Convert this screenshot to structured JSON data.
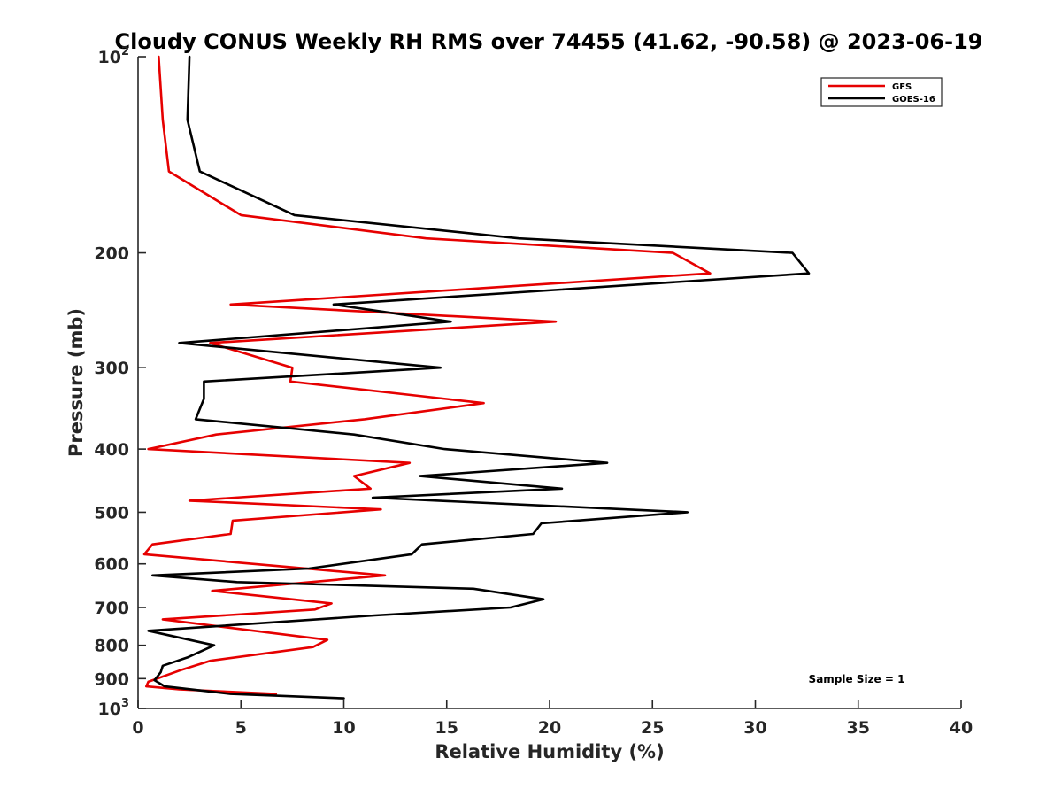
{
  "chart_data": {
    "type": "line",
    "title": "Cloudy CONUS Weekly RH RMS over 74455 (41.62, -90.58) @ 2023-06-19",
    "xlabel": "Relative Humidity (%)",
    "ylabel": "Pressure (mb)",
    "xlim": [
      0,
      40
    ],
    "ylim": [
      100,
      1000
    ],
    "y_scale": "log",
    "y_reversed": true,
    "x_ticks": [
      0,
      5,
      10,
      15,
      20,
      25,
      30,
      35,
      40
    ],
    "y_ticks": [
      {
        "value": 100,
        "label": "10",
        "exp": "2"
      },
      {
        "value": 200,
        "label": "200",
        "exp": ""
      },
      {
        "value": 300,
        "label": "300",
        "exp": ""
      },
      {
        "value": 400,
        "label": "400",
        "exp": ""
      },
      {
        "value": 500,
        "label": "500",
        "exp": ""
      },
      {
        "value": 600,
        "label": "600",
        "exp": ""
      },
      {
        "value": 700,
        "label": "700",
        "exp": ""
      },
      {
        "value": 800,
        "label": "800",
        "exp": ""
      },
      {
        "value": 900,
        "label": "900",
        "exp": ""
      },
      {
        "value": 1000,
        "label": "10",
        "exp": "3"
      }
    ],
    "legend_position": "top-right",
    "grid": false,
    "annotation": "Sample Size = 1",
    "series": [
      {
        "name": "GFS",
        "color": "#e60000",
        "points": [
          [
            1.0,
            100
          ],
          [
            1.2,
            125
          ],
          [
            1.5,
            150
          ],
          [
            5.0,
            175
          ],
          [
            14.0,
            190
          ],
          [
            26.0,
            200
          ],
          [
            27.8,
            215
          ],
          [
            4.5,
            240
          ],
          [
            20.3,
            255
          ],
          [
            3.5,
            275
          ],
          [
            7.5,
            300
          ],
          [
            7.4,
            315
          ],
          [
            16.8,
            340
          ],
          [
            11.0,
            360
          ],
          [
            3.8,
            380
          ],
          [
            0.5,
            400
          ],
          [
            13.2,
            420
          ],
          [
            10.5,
            440
          ],
          [
            11.3,
            460
          ],
          [
            2.5,
            480
          ],
          [
            11.8,
            495
          ],
          [
            4.6,
            515
          ],
          [
            4.5,
            540
          ],
          [
            0.7,
            560
          ],
          [
            0.3,
            580
          ],
          [
            12.0,
            625
          ],
          [
            3.6,
            660
          ],
          [
            9.4,
            690
          ],
          [
            8.6,
            705
          ],
          [
            1.2,
            730
          ],
          [
            9.2,
            785
          ],
          [
            8.5,
            805
          ],
          [
            3.5,
            845
          ],
          [
            2.0,
            875
          ],
          [
            0.5,
            910
          ],
          [
            0.4,
            925
          ],
          [
            2.0,
            935
          ],
          [
            6.7,
            950
          ]
        ]
      },
      {
        "name": "GOES-16",
        "color": "#000000",
        "points": [
          [
            2.5,
            100
          ],
          [
            2.4,
            125
          ],
          [
            3.0,
            150
          ],
          [
            7.6,
            175
          ],
          [
            18.5,
            190
          ],
          [
            31.8,
            200
          ],
          [
            32.6,
            215
          ],
          [
            9.5,
            240
          ],
          [
            15.2,
            255
          ],
          [
            2.0,
            275
          ],
          [
            14.7,
            300
          ],
          [
            3.2,
            315
          ],
          [
            3.2,
            335
          ],
          [
            2.8,
            360
          ],
          [
            10.5,
            380
          ],
          [
            14.9,
            400
          ],
          [
            22.8,
            420
          ],
          [
            13.7,
            440
          ],
          [
            20.6,
            460
          ],
          [
            11.4,
            475
          ],
          [
            26.7,
            500
          ],
          [
            19.6,
            520
          ],
          [
            19.2,
            540
          ],
          [
            13.8,
            560
          ],
          [
            13.3,
            580
          ],
          [
            8.3,
            610
          ],
          [
            0.7,
            625
          ],
          [
            4.8,
            640
          ],
          [
            16.3,
            655
          ],
          [
            19.7,
            680
          ],
          [
            18.1,
            700
          ],
          [
            11.5,
            720
          ],
          [
            0.5,
            760
          ],
          [
            3.7,
            800
          ],
          [
            2.4,
            835
          ],
          [
            1.2,
            860
          ],
          [
            1.1,
            880
          ],
          [
            0.8,
            905
          ],
          [
            1.3,
            925
          ],
          [
            4.5,
            950
          ],
          [
            10.0,
            965
          ]
        ]
      }
    ]
  }
}
